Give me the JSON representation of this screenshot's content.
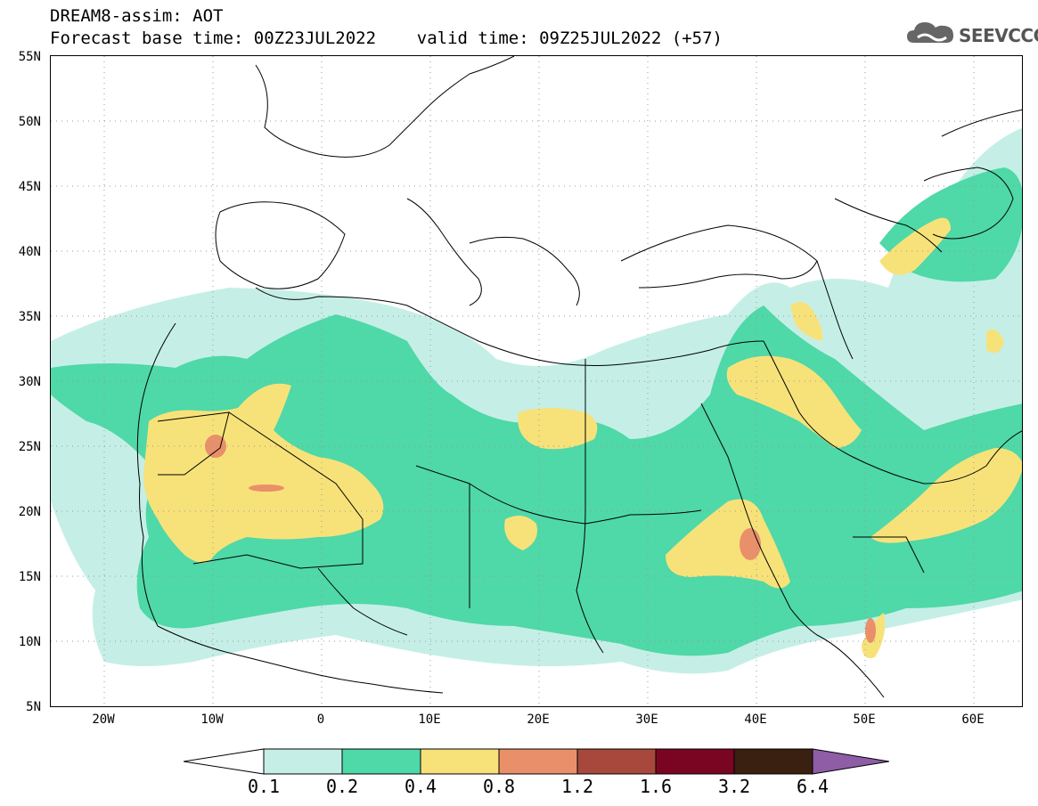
{
  "header": {
    "line1": "DREAM8-assim: AOT",
    "line2": "Forecast base time: 00Z23JUL2022    valid time: 09Z25JUL2022 (+57)"
  },
  "logo": {
    "text": "SEEVCCC",
    "icon": "cloud-icon"
  },
  "axes": {
    "y_labels": [
      "55N",
      "50N",
      "45N",
      "40N",
      "35N",
      "30N",
      "25N",
      "20N",
      "15N",
      "10N",
      "5N"
    ],
    "x_labels": [
      "20W",
      "10W",
      "0",
      "10E",
      "20E",
      "30E",
      "40E",
      "50E",
      "60E"
    ]
  },
  "colorbar": {
    "labels": [
      "0.1",
      "0.2",
      "0.4",
      "0.8",
      "1.2",
      "1.6",
      "3.2",
      "6.4"
    ],
    "colors": [
      "#ffffff",
      "#c5efe6",
      "#4fd8a8",
      "#f7e27a",
      "#e9906a",
      "#a8483c",
      "#7a0522",
      "#3a2010",
      "#8e5da6"
    ]
  },
  "legend_colors": {
    "aot_0_1": "#c5efe6",
    "aot_0_2": "#4fd8a8",
    "aot_0_4": "#f7e27a",
    "aot_0_8": "#e9906a",
    "aot_1_2": "#a8483c"
  }
}
